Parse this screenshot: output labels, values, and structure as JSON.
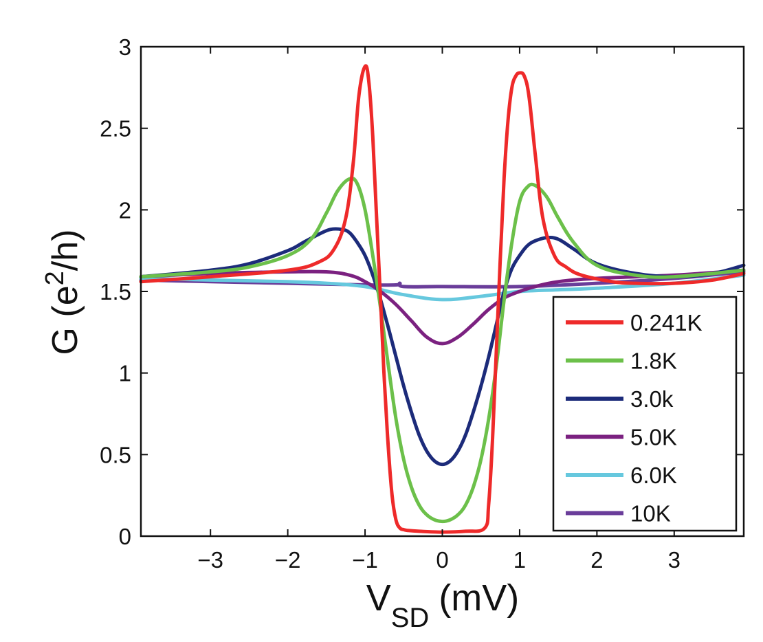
{
  "chart_data": {
    "type": "line",
    "xlabel_main": "V",
    "xlabel_sub": "SD",
    "xlabel_unit": "(mV)",
    "ylabel_prefix": "G (e",
    "ylabel_sup": "2",
    "ylabel_suffix": "/h)",
    "xlim": [
      -3.9,
      3.9
    ],
    "ylim": [
      0,
      3
    ],
    "xticks": [
      -3,
      -2,
      -1,
      0,
      1,
      2,
      3
    ],
    "xtick_labels": [
      "−3",
      "−2",
      "−1",
      "0",
      "1",
      "2",
      "3"
    ],
    "yticks": [
      0,
      0.5,
      1,
      1.5,
      2,
      2.5,
      3
    ],
    "ytick_labels": [
      "0",
      "0.5",
      "1",
      "1.5",
      "2",
      "2.5",
      "3"
    ],
    "legend_position": "bottom-right",
    "series": [
      {
        "name": "0.241K",
        "color": "#ee2a2a",
        "x": [
          -3.9,
          -3.0,
          -2.0,
          -1.6,
          -1.4,
          -1.25,
          -1.15,
          -1.08,
          -1.0,
          -0.95,
          -0.9,
          -0.85,
          -0.8,
          -0.75,
          -0.7,
          -0.65,
          -0.6,
          -0.55,
          -0.5,
          -0.45,
          -0.3,
          0.0,
          0.3,
          0.55,
          0.6,
          0.65,
          0.7,
          0.75,
          0.8,
          0.85,
          0.9,
          0.95,
          1.0,
          1.06,
          1.12,
          1.2,
          1.3,
          1.45,
          1.6,
          1.8,
          2.2,
          2.5,
          3.0,
          3.5,
          3.9
        ],
        "y": [
          1.56,
          1.59,
          1.63,
          1.68,
          1.76,
          1.95,
          2.3,
          2.7,
          2.88,
          2.78,
          2.45,
          1.95,
          1.45,
          0.95,
          0.55,
          0.25,
          0.1,
          0.05,
          0.04,
          0.035,
          0.03,
          0.025,
          0.03,
          0.05,
          0.2,
          0.6,
          1.15,
          1.7,
          2.2,
          2.55,
          2.75,
          2.82,
          2.84,
          2.82,
          2.7,
          2.35,
          1.95,
          1.72,
          1.65,
          1.6,
          1.56,
          1.55,
          1.55,
          1.57,
          1.61
        ]
      },
      {
        "name": "1.8K",
        "color": "#6cc04a",
        "x": [
          -3.9,
          -3.0,
          -2.5,
          -2.0,
          -1.7,
          -1.5,
          -1.35,
          -1.2,
          -1.1,
          -1.0,
          -0.9,
          -0.8,
          -0.7,
          -0.6,
          -0.5,
          -0.4,
          -0.3,
          -0.2,
          -0.1,
          0.0,
          0.1,
          0.2,
          0.3,
          0.4,
          0.5,
          0.6,
          0.7,
          0.8,
          0.9,
          1.0,
          1.1,
          1.2,
          1.35,
          1.5,
          1.7,
          2.0,
          2.5,
          3.0,
          3.9
        ],
        "y": [
          1.59,
          1.62,
          1.65,
          1.72,
          1.82,
          1.98,
          2.12,
          2.19,
          2.16,
          2.0,
          1.72,
          1.4,
          1.05,
          0.72,
          0.47,
          0.3,
          0.19,
          0.13,
          0.1,
          0.09,
          0.1,
          0.13,
          0.19,
          0.3,
          0.47,
          0.72,
          1.05,
          1.45,
          1.8,
          2.05,
          2.14,
          2.15,
          2.08,
          1.95,
          1.8,
          1.66,
          1.6,
          1.59,
          1.63
        ]
      },
      {
        "name": "3.0k",
        "color": "#1c2b7a",
        "x": [
          -3.9,
          -3.0,
          -2.5,
          -2.0,
          -1.8,
          -1.6,
          -1.45,
          -1.3,
          -1.2,
          -1.1,
          -1.0,
          -0.9,
          -0.8,
          -0.7,
          -0.6,
          -0.5,
          -0.4,
          -0.3,
          -0.2,
          -0.1,
          0.0,
          0.1,
          0.2,
          0.3,
          0.4,
          0.5,
          0.6,
          0.7,
          0.8,
          0.9,
          1.0,
          1.1,
          1.2,
          1.35,
          1.5,
          1.7,
          2.0,
          2.5,
          3.0,
          3.5,
          3.9
        ],
        "y": [
          1.59,
          1.63,
          1.67,
          1.75,
          1.8,
          1.85,
          1.88,
          1.88,
          1.86,
          1.8,
          1.72,
          1.6,
          1.45,
          1.28,
          1.1,
          0.92,
          0.76,
          0.62,
          0.52,
          0.46,
          0.44,
          0.46,
          0.52,
          0.62,
          0.76,
          0.92,
          1.1,
          1.3,
          1.5,
          1.64,
          1.72,
          1.78,
          1.81,
          1.83,
          1.82,
          1.76,
          1.67,
          1.61,
          1.59,
          1.61,
          1.66
        ]
      },
      {
        "name": "5.0K",
        "color": "#7b2180",
        "x": [
          -3.9,
          -3.0,
          -2.0,
          -1.5,
          -1.2,
          -1.0,
          -0.8,
          -0.6,
          -0.4,
          -0.2,
          0.0,
          0.2,
          0.4,
          0.6,
          0.8,
          1.0,
          1.2,
          1.5,
          2.0,
          3.0,
          3.9
        ],
        "y": [
          1.59,
          1.61,
          1.62,
          1.62,
          1.6,
          1.56,
          1.5,
          1.42,
          1.32,
          1.22,
          1.18,
          1.22,
          1.3,
          1.39,
          1.46,
          1.5,
          1.53,
          1.56,
          1.58,
          1.6,
          1.63
        ]
      },
      {
        "name": "6.0K",
        "color": "#66c8de",
        "x": [
          -3.9,
          -3.0,
          -2.0,
          -1.5,
          -1.0,
          -0.5,
          0.0,
          0.5,
          1.0,
          1.5,
          2.0,
          3.0,
          3.9
        ],
        "y": [
          1.58,
          1.57,
          1.56,
          1.55,
          1.53,
          1.48,
          1.45,
          1.47,
          1.5,
          1.51,
          1.52,
          1.55,
          1.6
        ]
      },
      {
        "name": "10K",
        "color": "#6a3d9a",
        "x": [
          -3.9,
          -3.0,
          -2.0,
          -1.0,
          -0.6,
          -0.55,
          -0.5,
          0.0,
          1.0,
          2.0,
          3.0,
          3.9
        ],
        "y": [
          1.57,
          1.56,
          1.55,
          1.54,
          1.54,
          1.55,
          1.53,
          1.53,
          1.53,
          1.55,
          1.58,
          1.62
        ]
      }
    ]
  }
}
